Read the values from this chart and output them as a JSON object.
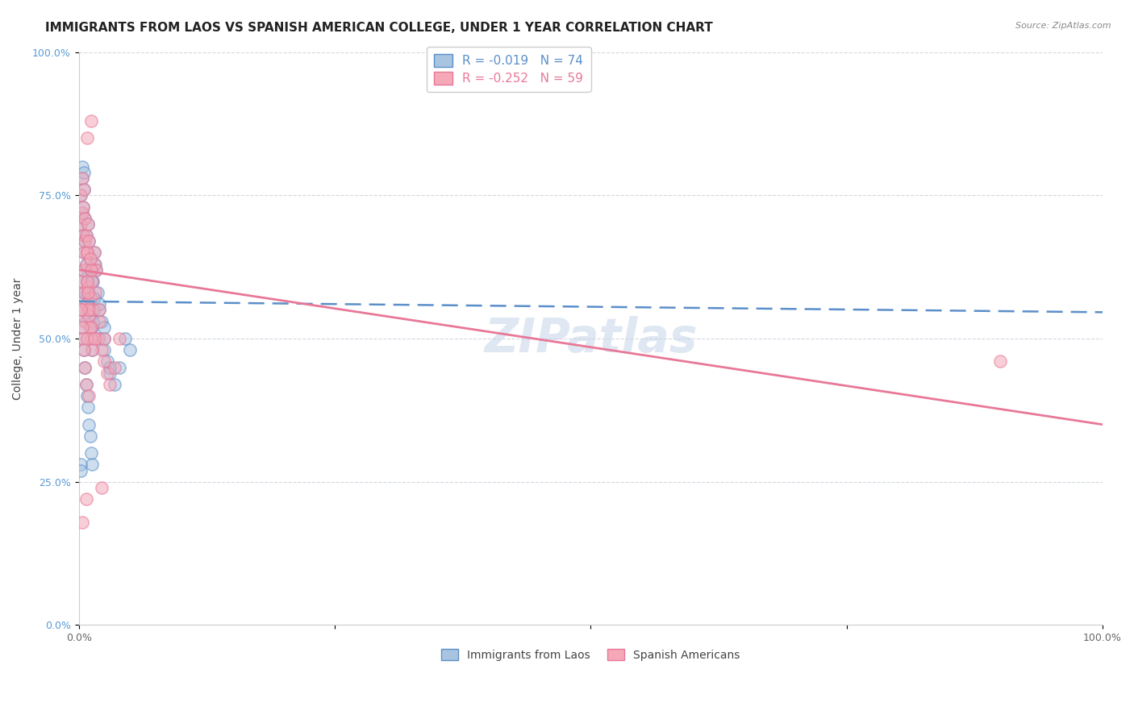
{
  "title": "IMMIGRANTS FROM LAOS VS SPANISH AMERICAN COLLEGE, UNDER 1 YEAR CORRELATION CHART",
  "source": "Source: ZipAtlas.com",
  "ylabel": "College, Under 1 year",
  "xlim": [
    0.0,
    1.0
  ],
  "ylim": [
    0.0,
    1.0
  ],
  "ytick_labels": [
    "0.0%",
    "25.0%",
    "50.0%",
    "75.0%",
    "100.0%"
  ],
  "ytick_positions": [
    0.0,
    0.25,
    0.5,
    0.75,
    1.0
  ],
  "legend1_label": "R = -0.019   N = 74",
  "legend2_label": "R = -0.252   N = 59",
  "color_blue": "#a8c4e0",
  "color_pink": "#f4a8b8",
  "line_color_blue": "#5b8fc9",
  "line_color_pink": "#e87898",
  "watermark_color": "#c5d5e8",
  "blue_scatter_x": [
    0.002,
    0.003,
    0.004,
    0.005,
    0.006,
    0.007,
    0.008,
    0.009,
    0.01,
    0.011,
    0.012,
    0.013,
    0.014,
    0.015,
    0.016,
    0.018,
    0.02,
    0.022,
    0.025,
    0.028,
    0.03,
    0.035,
    0.04,
    0.045,
    0.05,
    0.002,
    0.003,
    0.004,
    0.005,
    0.006,
    0.007,
    0.008,
    0.009,
    0.01,
    0.011,
    0.012,
    0.013,
    0.015,
    0.017,
    0.02,
    0.025,
    0.03,
    0.002,
    0.003,
    0.004,
    0.005,
    0.006,
    0.007,
    0.008,
    0.009,
    0.01,
    0.011,
    0.012,
    0.013,
    0.014,
    0.002,
    0.003,
    0.004,
    0.005,
    0.006,
    0.007,
    0.008,
    0.009,
    0.01,
    0.011,
    0.012,
    0.013,
    0.014,
    0.015,
    0.02,
    0.025,
    0.003,
    0.005,
    0.002
  ],
  "blue_scatter_y": [
    0.57,
    0.6,
    0.55,
    0.62,
    0.58,
    0.53,
    0.56,
    0.61,
    0.59,
    0.54,
    0.57,
    0.52,
    0.6,
    0.55,
    0.63,
    0.58,
    0.5,
    0.53,
    0.48,
    0.46,
    0.44,
    0.42,
    0.45,
    0.5,
    0.48,
    0.7,
    0.72,
    0.68,
    0.65,
    0.67,
    0.63,
    0.6,
    0.58,
    0.55,
    0.52,
    0.5,
    0.48,
    0.65,
    0.62,
    0.55,
    0.5,
    0.45,
    0.75,
    0.78,
    0.73,
    0.76,
    0.71,
    0.68,
    0.65,
    0.7,
    0.67,
    0.64,
    0.62,
    0.6,
    0.57,
    0.55,
    0.52,
    0.5,
    0.48,
    0.45,
    0.42,
    0.4,
    0.38,
    0.35,
    0.33,
    0.3,
    0.28,
    0.53,
    0.57,
    0.56,
    0.52,
    0.8,
    0.79,
    0.28
  ],
  "pink_scatter_x": [
    0.002,
    0.003,
    0.004,
    0.005,
    0.006,
    0.007,
    0.008,
    0.009,
    0.01,
    0.011,
    0.012,
    0.013,
    0.014,
    0.015,
    0.016,
    0.018,
    0.02,
    0.022,
    0.025,
    0.028,
    0.03,
    0.035,
    0.04,
    0.002,
    0.003,
    0.004,
    0.005,
    0.006,
    0.007,
    0.008,
    0.009,
    0.01,
    0.011,
    0.012,
    0.013,
    0.015,
    0.017,
    0.02,
    0.025,
    0.002,
    0.003,
    0.004,
    0.005,
    0.006,
    0.007,
    0.008,
    0.009,
    0.01,
    0.011,
    0.012,
    0.002,
    0.003,
    0.004,
    0.005,
    0.006,
    0.007,
    0.008,
    0.01,
    0.9
  ],
  "pink_scatter_y": [
    0.6,
    0.55,
    0.62,
    0.58,
    0.53,
    0.56,
    0.65,
    0.59,
    0.54,
    0.57,
    0.52,
    0.6,
    0.55,
    0.63,
    0.58,
    0.5,
    0.53,
    0.48,
    0.46,
    0.44,
    0.42,
    0.45,
    0.5,
    0.7,
    0.72,
    0.68,
    0.65,
    0.67,
    0.63,
    0.6,
    0.58,
    0.55,
    0.52,
    0.5,
    0.48,
    0.65,
    0.62,
    0.55,
    0.5,
    0.75,
    0.78,
    0.73,
    0.76,
    0.71,
    0.68,
    0.65,
    0.7,
    0.67,
    0.64,
    0.62,
    0.55,
    0.52,
    0.5,
    0.48,
    0.45,
    0.42,
    0.85,
    0.4,
    0.46
  ],
  "blue_trend_x": [
    0.0,
    1.0
  ],
  "blue_trend_y": [
    0.565,
    0.546
  ],
  "pink_trend_x": [
    0.0,
    1.0
  ],
  "pink_trend_y": [
    0.62,
    0.35
  ],
  "background_color": "#ffffff",
  "grid_color": "#d0d8e0",
  "title_fontsize": 11,
  "axis_label_fontsize": 10,
  "tick_fontsize": 9,
  "scatter_size": 120,
  "scatter_alpha": 0.55,
  "extra_pink_points": [
    [
      0.012,
      0.88
    ],
    [
      0.003,
      0.18
    ],
    [
      0.007,
      0.22
    ],
    [
      0.022,
      0.24
    ],
    [
      0.008,
      0.5
    ],
    [
      0.015,
      0.5
    ]
  ],
  "extra_blue_points": [
    [
      0.002,
      0.27
    ]
  ]
}
